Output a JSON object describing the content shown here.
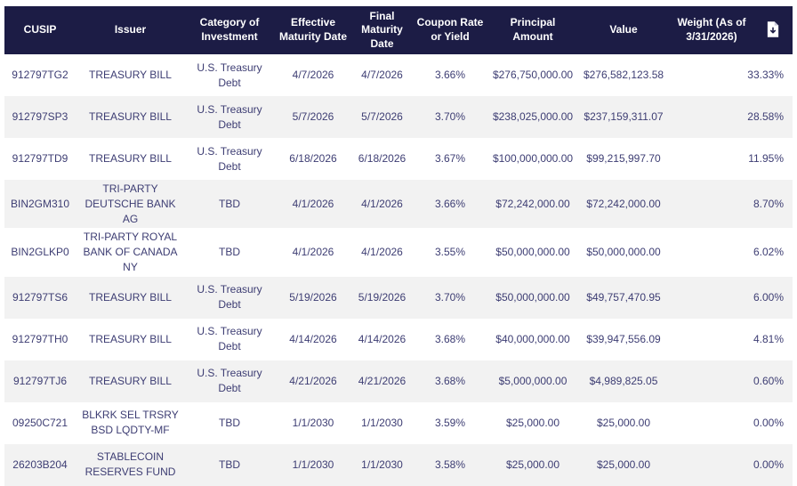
{
  "header": {
    "columns": [
      "CUSIP",
      "Issuer",
      "Category of Investment",
      "Effective Maturity Date",
      "Final Maturity Date",
      "Coupon Rate or Yield",
      "Principal Amount",
      "Value",
      "Weight (As of 3/31/2026)"
    ],
    "export_icon": "file-download-icon"
  },
  "colors": {
    "header_bg": "#1c1c45",
    "body_text": "#3d3d73",
    "stripe_bg": "#f2f2f2"
  },
  "rows": [
    {
      "cusip": "912797TG2",
      "issuer": "TREASURY BILL",
      "category": "U.S. Treasury Debt",
      "effective_maturity": "4/7/2026",
      "final_maturity": "4/7/2026",
      "coupon": "3.66%",
      "principal": "$276,750,000.00",
      "value": "$276,582,123.58",
      "weight": "33.33%"
    },
    {
      "cusip": "912797SP3",
      "issuer": "TREASURY BILL",
      "category": "U.S. Treasury Debt",
      "effective_maturity": "5/7/2026",
      "final_maturity": "5/7/2026",
      "coupon": "3.70%",
      "principal": "$238,025,000.00",
      "value": "$237,159,311.07",
      "weight": "28.58%"
    },
    {
      "cusip": "912797TD9",
      "issuer": "TREASURY BILL",
      "category": "U.S. Treasury Debt",
      "effective_maturity": "6/18/2026",
      "final_maturity": "6/18/2026",
      "coupon": "3.67%",
      "principal": "$100,000,000.00",
      "value": "$99,215,997.70",
      "weight": "11.95%"
    },
    {
      "cusip": "BIN2GM310",
      "issuer": "TRI-PARTY DEUTSCHE BANK AG",
      "category": "TBD",
      "effective_maturity": "4/1/2026",
      "final_maturity": "4/1/2026",
      "coupon": "3.66%",
      "principal": "$72,242,000.00",
      "value": "$72,242,000.00",
      "weight": "8.70%"
    },
    {
      "cusip": "BIN2GLKP0",
      "issuer": "TRI-PARTY ROYAL BANK OF CANADA NY",
      "category": "TBD",
      "effective_maturity": "4/1/2026",
      "final_maturity": "4/1/2026",
      "coupon": "3.55%",
      "principal": "$50,000,000.00",
      "value": "$50,000,000.00",
      "weight": "6.02%"
    },
    {
      "cusip": "912797TS6",
      "issuer": "TREASURY BILL",
      "category": "U.S. Treasury Debt",
      "effective_maturity": "5/19/2026",
      "final_maturity": "5/19/2026",
      "coupon": "3.70%",
      "principal": "$50,000,000.00",
      "value": "$49,757,470.95",
      "weight": "6.00%"
    },
    {
      "cusip": "912797TH0",
      "issuer": "TREASURY BILL",
      "category": "U.S. Treasury Debt",
      "effective_maturity": "4/14/2026",
      "final_maturity": "4/14/2026",
      "coupon": "3.68%",
      "principal": "$40,000,000.00",
      "value": "$39,947,556.09",
      "weight": "4.81%"
    },
    {
      "cusip": "912797TJ6",
      "issuer": "TREASURY BILL",
      "category": "U.S. Treasury Debt",
      "effective_maturity": "4/21/2026",
      "final_maturity": "4/21/2026",
      "coupon": "3.68%",
      "principal": "$5,000,000.00",
      "value": "$4,989,825.05",
      "weight": "0.60%"
    },
    {
      "cusip": "09250C721",
      "issuer": "BLKRK SEL TRSRY BSD LQDTY-MF",
      "category": "TBD",
      "effective_maturity": "1/1/2030",
      "final_maturity": "1/1/2030",
      "coupon": "3.59%",
      "principal": "$25,000.00",
      "value": "$25,000.00",
      "weight": "0.00%"
    },
    {
      "cusip": "26203B204",
      "issuer": "STABLECOIN RESERVES FUND",
      "category": "TBD",
      "effective_maturity": "1/1/2030",
      "final_maturity": "1/1/2030",
      "coupon": "3.58%",
      "principal": "$25,000.00",
      "value": "$25,000.00",
      "weight": "0.00%"
    }
  ]
}
